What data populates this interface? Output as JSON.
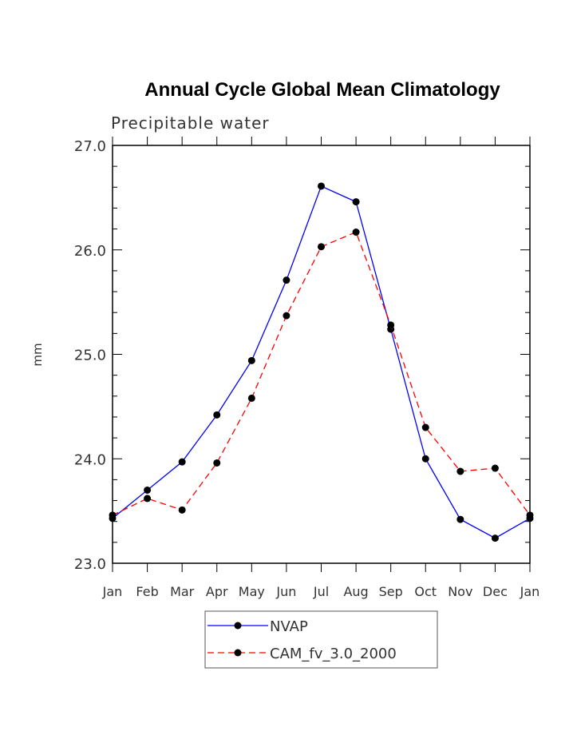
{
  "chart_data": {
    "type": "line",
    "title": "Annual Cycle Global Mean Climatology",
    "subtitle": "Precipitable water",
    "xlabel": "",
    "ylabel": "mm",
    "ylim": [
      23.0,
      27.0
    ],
    "yticks": [
      "23.0",
      "24.0",
      "25.0",
      "26.0",
      "27.0"
    ],
    "categories": [
      "Jan",
      "Feb",
      "Mar",
      "Apr",
      "May",
      "Jun",
      "Jul",
      "Aug",
      "Sep",
      "Oct",
      "Nov",
      "Dec",
      "Jan"
    ],
    "legend_position": "bottom",
    "series": [
      {
        "name": "NVAP",
        "color": "#0000ff",
        "line_style": "solid",
        "values": [
          23.43,
          23.7,
          23.97,
          24.42,
          24.94,
          25.71,
          26.61,
          26.46,
          25.24,
          24.0,
          23.42,
          23.24,
          23.43
        ]
      },
      {
        "name": "CAM_fv_3.0_2000",
        "color": "#ff0000",
        "line_style": "dashed",
        "values": [
          23.46,
          23.62,
          23.51,
          23.96,
          24.58,
          25.37,
          26.03,
          26.17,
          25.28,
          24.3,
          23.88,
          23.91,
          23.46
        ]
      }
    ]
  }
}
